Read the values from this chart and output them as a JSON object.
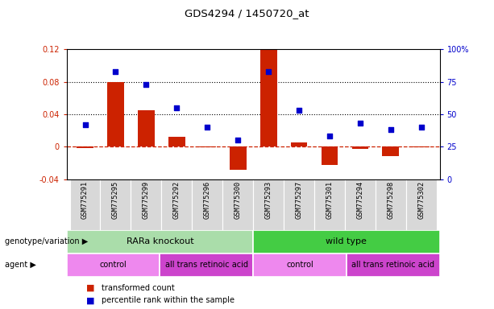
{
  "title": "GDS4294 / 1450720_at",
  "samples": [
    "GSM775291",
    "GSM775295",
    "GSM775299",
    "GSM775292",
    "GSM775296",
    "GSM775300",
    "GSM775293",
    "GSM775297",
    "GSM775301",
    "GSM775294",
    "GSM775298",
    "GSM775302"
  ],
  "transformed_count": [
    -0.002,
    0.08,
    0.045,
    0.012,
    -0.001,
    -0.028,
    0.12,
    0.005,
    -0.022,
    -0.003,
    -0.012,
    -0.001
  ],
  "percentile_rank_pct": [
    42,
    83,
    73,
    55,
    40,
    30,
    83,
    53,
    33,
    43,
    38,
    40
  ],
  "ylim_left": [
    -0.04,
    0.12
  ],
  "ylim_right": [
    0,
    100
  ],
  "yticks_left": [
    -0.04,
    0,
    0.04,
    0.08,
    0.12
  ],
  "yticks_right": [
    0,
    25,
    50,
    75,
    100
  ],
  "hlines_dotted": [
    0.04,
    0.08
  ],
  "bar_color": "#cc2200",
  "dot_color": "#0000cc",
  "genotype_groups": [
    {
      "label": "RARa knockout",
      "start": 0,
      "end": 6,
      "color": "#aaddaa"
    },
    {
      "label": "wild type",
      "start": 6,
      "end": 12,
      "color": "#44cc44"
    }
  ],
  "agent_groups": [
    {
      "label": "control",
      "start": 0,
      "end": 3,
      "color": "#ee88ee"
    },
    {
      "label": "all trans retinoic acid",
      "start": 3,
      "end": 6,
      "color": "#cc44cc"
    },
    {
      "label": "control",
      "start": 6,
      "end": 9,
      "color": "#ee88ee"
    },
    {
      "label": "all trans retinoic acid",
      "start": 9,
      "end": 12,
      "color": "#cc44cc"
    }
  ],
  "legend_bar_label": "transformed count",
  "legend_dot_label": "percentile rank within the sample",
  "label_genotype": "genotype/variation",
  "label_agent": "agent",
  "tick_label_bg": "#d8d8d8"
}
